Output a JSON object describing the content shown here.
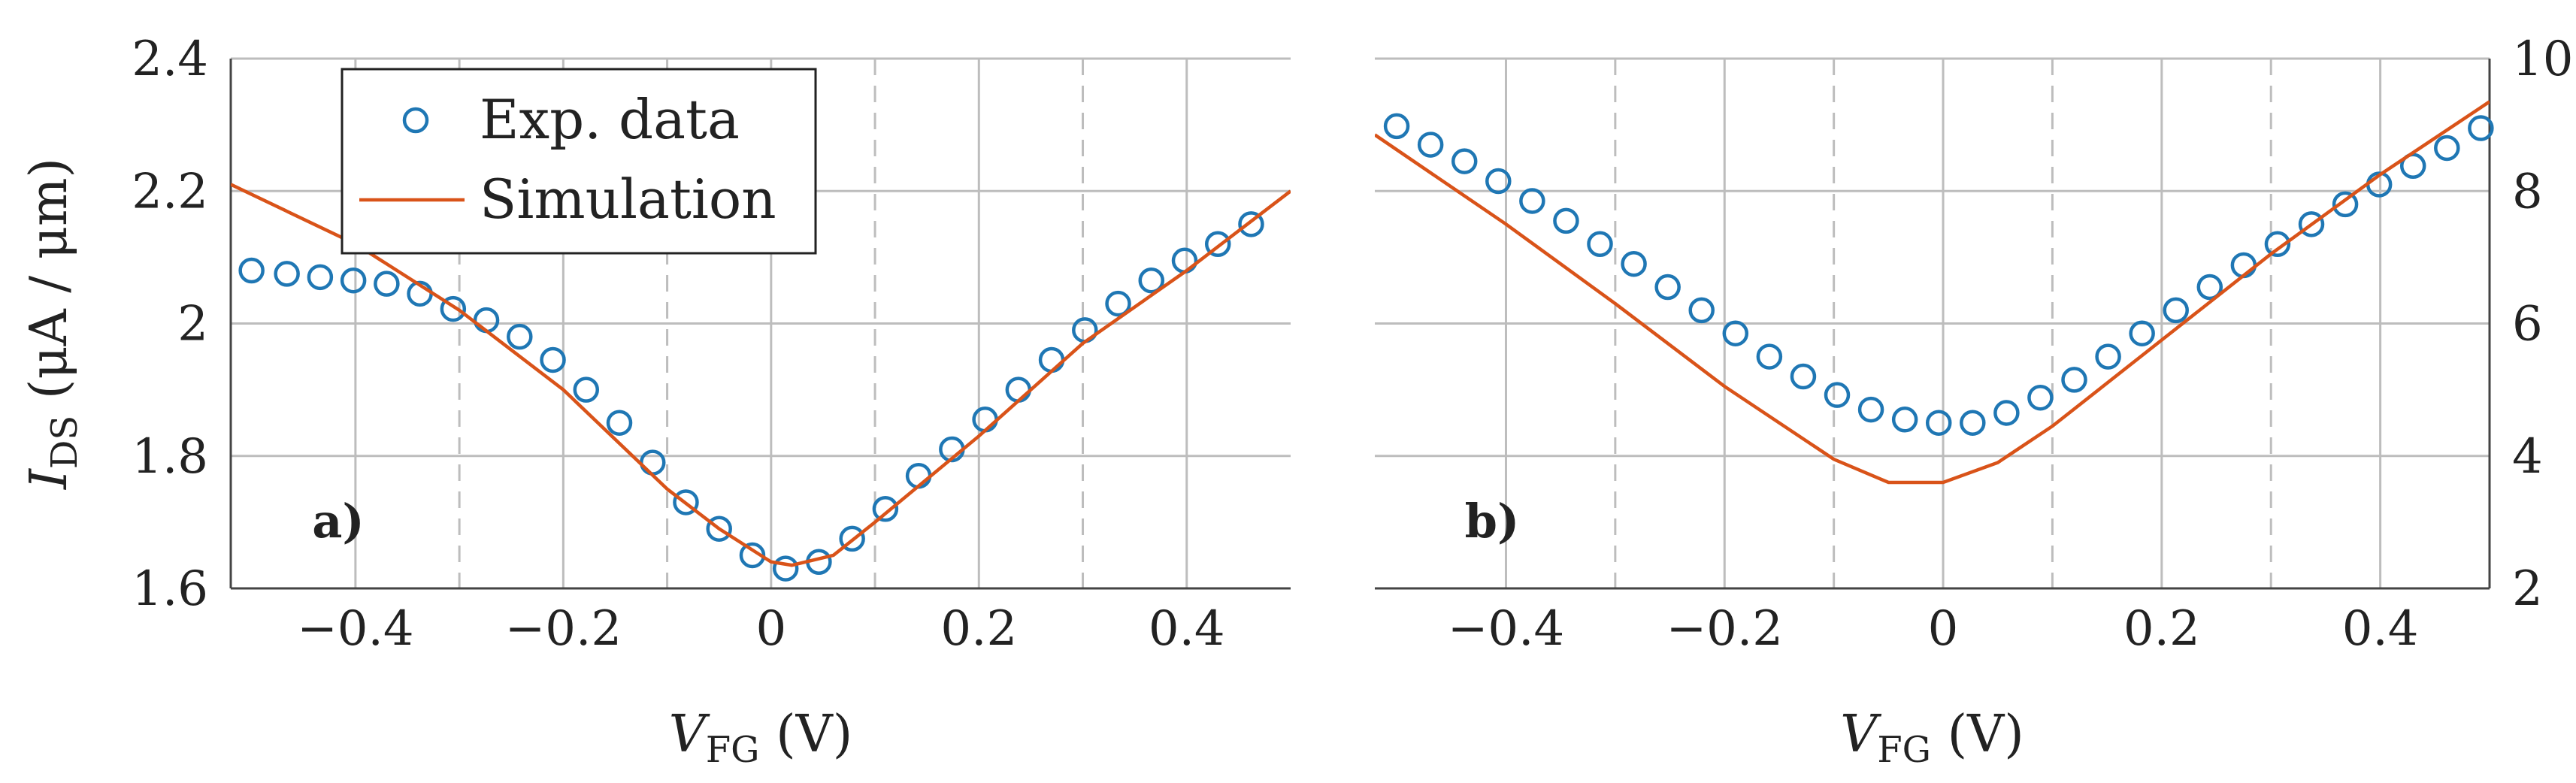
{
  "chart_data": [
    {
      "type": "scatter+line",
      "panel_label": "a)",
      "xlabel_main": "V",
      "xlabel_sub": "FG",
      "xlabel_unit": " (V)",
      "ylabel_main": "I",
      "ylabel_sub": "DS",
      "ylabel_unit": " (μA / μm)",
      "xlim": [
        -0.52,
        0.5
      ],
      "ylim": [
        1.6,
        2.4
      ],
      "xticks": [
        -0.4,
        -0.2,
        0,
        0.2,
        0.4
      ],
      "xtick_labels": [
        "−0.4",
        "−0.2",
        "0",
        "0.2",
        "0.4"
      ],
      "xgrid_dashed": [
        -0.3,
        -0.1,
        0.1,
        0.3
      ],
      "yticks": [
        1.6,
        1.8,
        2.0,
        2.2,
        2.4
      ],
      "ytick_labels": [
        "1.6",
        "1.8",
        "2",
        "2.2",
        "2.4"
      ],
      "y_axis_side": "left",
      "grid": true,
      "legend": {
        "placement": "top-left",
        "entries": [
          {
            "label": "Exp. data",
            "marker": "circle",
            "color": "#1f77b4"
          },
          {
            "label": "Simulation",
            "marker": "line",
            "color": "#d95319"
          }
        ]
      },
      "series": [
        {
          "name": "Exp. data",
          "kind": "scatter",
          "x": [
            -0.5,
            -0.466,
            -0.434,
            -0.402,
            -0.37,
            -0.338,
            -0.306,
            -0.274,
            -0.242,
            -0.21,
            -0.178,
            -0.146,
            -0.114,
            -0.082,
            -0.05,
            -0.018,
            0.014,
            0.046,
            0.078,
            0.11,
            0.142,
            0.174,
            0.206,
            0.238,
            0.27,
            0.302,
            0.334,
            0.366,
            0.398,
            0.43,
            0.462
          ],
          "y": [
            2.08,
            2.075,
            2.07,
            2.065,
            2.06,
            2.045,
            2.022,
            2.005,
            1.98,
            1.945,
            1.9,
            1.85,
            1.79,
            1.73,
            1.69,
            1.65,
            1.63,
            1.64,
            1.675,
            1.72,
            1.77,
            1.81,
            1.855,
            1.9,
            1.945,
            1.99,
            2.03,
            2.065,
            2.095,
            2.12,
            2.15
          ]
        },
        {
          "name": "Simulation",
          "kind": "line",
          "x": [
            -0.52,
            -0.4,
            -0.3,
            -0.2,
            -0.1,
            -0.05,
            0,
            0.02,
            0.06,
            0.1,
            0.2,
            0.3,
            0.4,
            0.5
          ],
          "y": [
            2.21,
            2.12,
            2.02,
            1.9,
            1.75,
            1.69,
            1.64,
            1.635,
            1.65,
            1.7,
            1.83,
            1.97,
            2.08,
            2.2
          ]
        }
      ]
    },
    {
      "type": "scatter+line",
      "panel_label": "b)",
      "xlabel_main": "V",
      "xlabel_sub": "FG",
      "xlabel_unit": " (V)",
      "xlim": [
        -0.52,
        0.5
      ],
      "ylim": [
        2,
        10
      ],
      "xticks": [
        -0.4,
        -0.2,
        0,
        0.2,
        0.4
      ],
      "xtick_labels": [
        "−0.4",
        "−0.2",
        "0",
        "0.2",
        "0.4"
      ],
      "xgrid_dashed": [
        -0.3,
        -0.1,
        0.1,
        0.3
      ],
      "yticks": [
        2,
        4,
        6,
        8,
        10
      ],
      "ytick_labels": [
        "2",
        "4",
        "6",
        "8",
        "10"
      ],
      "y_axis_side": "right",
      "grid": true,
      "series": [
        {
          "name": "Exp. data",
          "kind": "scatter",
          "x": [
            -0.5,
            -0.469,
            -0.438,
            -0.407,
            -0.376,
            -0.345,
            -0.314,
            -0.283,
            -0.252,
            -0.221,
            -0.19,
            -0.159,
            -0.128,
            -0.097,
            -0.066,
            -0.035,
            -0.004,
            0.027,
            0.058,
            0.089,
            0.12,
            0.151,
            0.182,
            0.213,
            0.244,
            0.275,
            0.306,
            0.337,
            0.368,
            0.399,
            0.43,
            0.461,
            0.492
          ],
          "y": [
            8.98,
            8.7,
            8.45,
            8.15,
            7.85,
            7.55,
            7.2,
            6.9,
            6.55,
            6.2,
            5.85,
            5.5,
            5.2,
            4.92,
            4.7,
            4.55,
            4.5,
            4.5,
            4.65,
            4.88,
            5.15,
            5.5,
            5.85,
            6.2,
            6.55,
            6.88,
            7.2,
            7.5,
            7.8,
            8.1,
            8.38,
            8.65,
            8.95
          ]
        },
        {
          "name": "Simulation",
          "kind": "line",
          "x": [
            -0.52,
            -0.4,
            -0.3,
            -0.2,
            -0.1,
            -0.05,
            0,
            0.05,
            0.1,
            0.2,
            0.3,
            0.4,
            0.5
          ],
          "y": [
            8.85,
            7.5,
            6.3,
            5.05,
            3.95,
            3.6,
            3.6,
            3.9,
            4.45,
            5.75,
            7.05,
            8.25,
            9.35
          ]
        }
      ]
    }
  ]
}
